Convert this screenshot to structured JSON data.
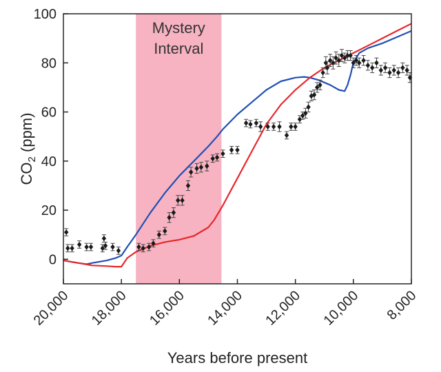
{
  "chart_data": {
    "type": "scatter",
    "title": "",
    "xlabel": "Years before present",
    "ylabel": "CO",
    "ylabel_sub": "2",
    "ylabel_unit": " (ppm)",
    "xlim": [
      20000,
      8000
    ],
    "ylim": [
      -10,
      100
    ],
    "x_ticks": [
      20000,
      18000,
      16000,
      14000,
      12000,
      10000,
      8000
    ],
    "x_tick_labels": [
      "20,000",
      "18,000",
      "16,000",
      "14,000",
      "12,000",
      "10,000",
      "8,000"
    ],
    "y_ticks": [
      0,
      20,
      40,
      60,
      80,
      100
    ],
    "y_tick_labels": [
      "0",
      "20",
      "40",
      "60",
      "80",
      "100"
    ],
    "grid": false,
    "band": {
      "x_from": 17500,
      "x_to": 14550,
      "color": "#f7b3c2",
      "label_lines": [
        "Mystery",
        "Interval"
      ]
    },
    "series": [
      {
        "kind": "line",
        "color": "#1f4eb4",
        "x": [
          20000,
          19500,
          19200,
          19000,
          18500,
          18200,
          18000,
          17800,
          17500,
          17000,
          16500,
          16000,
          15500,
          15000,
          14700,
          14500,
          14000,
          13500,
          13000,
          12500,
          12000,
          11700,
          11500,
          11200,
          11000,
          10800,
          10500,
          10300,
          10200,
          10100,
          10000,
          9800,
          9500,
          9000,
          8500,
          8000
        ],
        "y": [
          -0.5,
          -1.5,
          -2,
          -1.5,
          -0.5,
          0.5,
          1.5,
          5,
          10,
          19,
          27,
          34,
          40,
          46,
          50,
          53,
          59,
          64,
          69,
          72.5,
          74,
          74.3,
          74,
          73,
          72,
          71,
          69,
          68.5,
          71,
          75,
          80,
          84,
          86,
          88,
          90.5,
          93
        ]
      },
      {
        "kind": "line",
        "color": "#e8262a",
        "x": [
          20000,
          19500,
          19000,
          18500,
          18200,
          18000,
          17800,
          17500,
          17000,
          16500,
          16000,
          15500,
          15000,
          14800,
          14500,
          14000,
          13500,
          13000,
          12500,
          12000,
          11500,
          11000,
          10500,
          10000,
          9500,
          9000,
          8500,
          8000
        ],
        "y": [
          -0.5,
          -1.5,
          -2.5,
          -2.8,
          -3,
          -3,
          0.5,
          3,
          5.5,
          7,
          8,
          9.5,
          13,
          16,
          22,
          33,
          44,
          55,
          63,
          69,
          74,
          78,
          81,
          84,
          87,
          90,
          93,
          96
        ]
      },
      {
        "kind": "scatter",
        "color": "#1a1a1a",
        "points": [
          [
            19900,
            11,
            1.5
          ],
          [
            19850,
            4.5,
            1.5
          ],
          [
            19700,
            4.5,
            1.5
          ],
          [
            19450,
            6,
            1.5
          ],
          [
            19200,
            5,
            1.5
          ],
          [
            19050,
            5,
            1.5
          ],
          [
            18650,
            4.5,
            1.5
          ],
          [
            18600,
            8.5,
            1.5
          ],
          [
            18550,
            5.5,
            1.5
          ],
          [
            18300,
            5,
            1.5
          ],
          [
            18100,
            3.5,
            1.5
          ],
          [
            17400,
            5,
            1.5
          ],
          [
            17250,
            4.5,
            1.5
          ],
          [
            17050,
            5,
            1.5
          ],
          [
            16900,
            6.5,
            1.5
          ],
          [
            16700,
            10,
            1.5
          ],
          [
            16500,
            11.5,
            1.5
          ],
          [
            16350,
            17,
            2
          ],
          [
            16200,
            19,
            2
          ],
          [
            16050,
            24,
            2
          ],
          [
            15900,
            24,
            2
          ],
          [
            15700,
            30,
            2
          ],
          [
            15600,
            35.5,
            2
          ],
          [
            15400,
            37,
            2
          ],
          [
            15250,
            37.5,
            2
          ],
          [
            15050,
            38,
            2
          ],
          [
            14850,
            41,
            1.5
          ],
          [
            14700,
            41.5,
            1.5
          ],
          [
            14500,
            43,
            1.5
          ],
          [
            14200,
            44.5,
            1.5
          ],
          [
            14000,
            44.5,
            1.5
          ],
          [
            13700,
            55.5,
            1.5
          ],
          [
            13550,
            55,
            1.5
          ],
          [
            13350,
            55.5,
            1.5
          ],
          [
            13200,
            54,
            2
          ],
          [
            12950,
            54,
            1.5
          ],
          [
            12750,
            54,
            1.5
          ],
          [
            12550,
            54,
            2
          ],
          [
            12300,
            50.5,
            1.5
          ],
          [
            12150,
            54,
            1.5
          ],
          [
            12000,
            54,
            1.5
          ],
          [
            11850,
            57,
            1.5
          ],
          [
            11750,
            58.5,
            1.5
          ],
          [
            11650,
            59.5,
            2
          ],
          [
            11550,
            62,
            2
          ],
          [
            11450,
            66.5,
            2
          ],
          [
            11350,
            67,
            2
          ],
          [
            11250,
            70,
            2
          ],
          [
            11150,
            71,
            2
          ],
          [
            11050,
            76,
            2
          ],
          [
            10950,
            80,
            2.5
          ],
          [
            10900,
            78,
            2.5
          ],
          [
            10800,
            81,
            2.5
          ],
          [
            10700,
            80,
            2.5
          ],
          [
            10600,
            82,
            2.5
          ],
          [
            10500,
            81,
            2.5
          ],
          [
            10400,
            83,
            2.5
          ],
          [
            10300,
            82,
            2
          ],
          [
            10200,
            83,
            2
          ],
          [
            10100,
            83,
            2
          ],
          [
            10000,
            80,
            2
          ],
          [
            9900,
            81,
            2
          ],
          [
            9800,
            80,
            2
          ],
          [
            9650,
            81,
            2
          ],
          [
            9500,
            79,
            2
          ],
          [
            9350,
            78,
            2
          ],
          [
            9200,
            80,
            2
          ],
          [
            9050,
            77,
            2
          ],
          [
            8900,
            78,
            2
          ],
          [
            8750,
            76,
            2
          ],
          [
            8600,
            77,
            2
          ],
          [
            8450,
            76,
            2
          ],
          [
            8300,
            78,
            2
          ],
          [
            8150,
            77,
            2
          ],
          [
            8050,
            74,
            2
          ]
        ]
      }
    ]
  }
}
